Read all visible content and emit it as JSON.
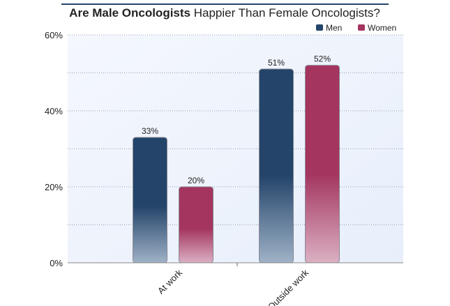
{
  "chart_data": {
    "type": "bar",
    "title_bold": "Are Male Oncologists",
    "title_rest": " Happier Than Female Oncologists?",
    "categories": [
      "At work",
      "Outside work"
    ],
    "series": [
      {
        "name": "Men",
        "values": [
          33,
          51
        ],
        "labels": [
          "33%",
          "51%"
        ],
        "color": "#24446a",
        "fade": "#9fb2c7"
      },
      {
        "name": "Women",
        "values": [
          20,
          52
        ],
        "labels": [
          "20%",
          "52%"
        ],
        "color": "#a3355f",
        "fade": "#dbb0c3"
      }
    ],
    "ylim": [
      0,
      60
    ],
    "yticks": [
      0,
      20,
      40,
      60
    ],
    "ytick_labels": [
      "0%",
      "20%",
      "40%",
      "60%"
    ],
    "grid": true,
    "legend_position": "top-right"
  }
}
